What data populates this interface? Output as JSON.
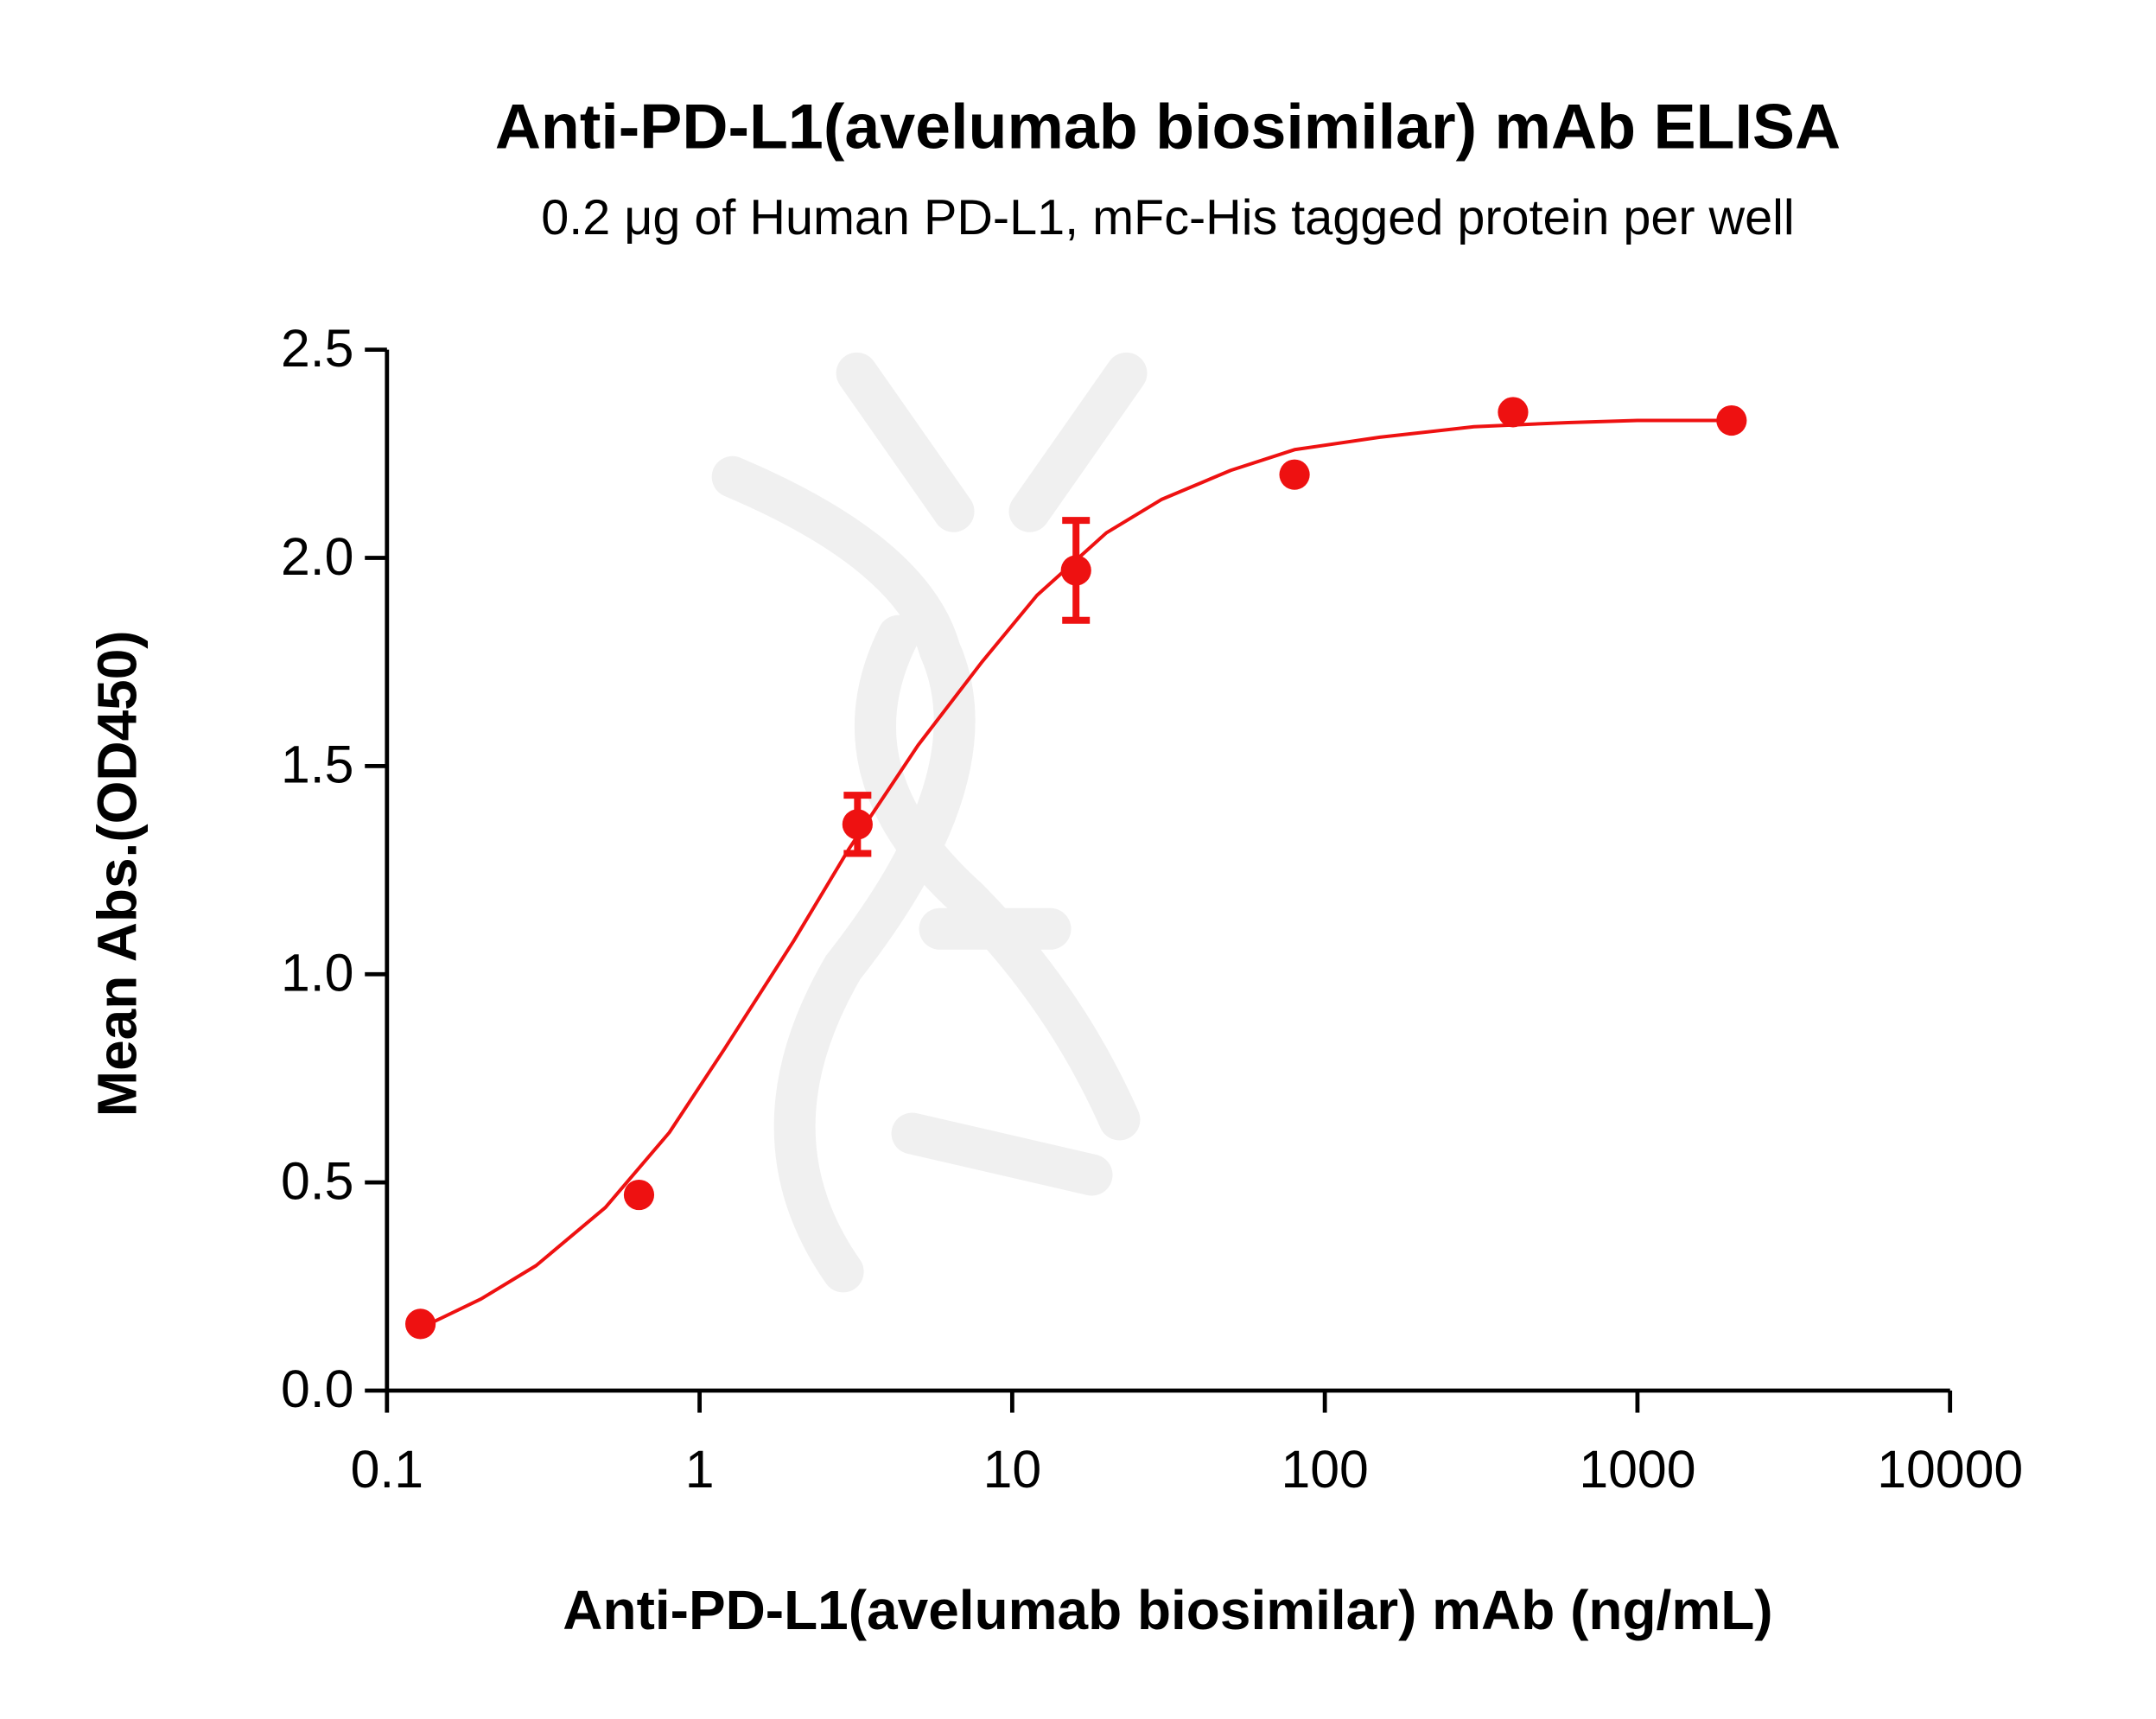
{
  "chart_data": {
    "type": "scatter",
    "title": "Anti-PD-L1(avelumab biosimilar) mAb ELISA",
    "subtitle": "0.2 μg of Human PD-L1,  mFc-His tagged protein per well",
    "x_label": "Anti-PD-L1(avelumab biosimilar) mAb (ng/mL)",
    "y_label": "Mean Abs.(OD450)",
    "x_scale": "log",
    "xlim": [
      0.1,
      10000
    ],
    "xticks": [
      0.1,
      1,
      10,
      100,
      1000,
      10000
    ],
    "ylim": [
      0,
      2.5
    ],
    "yticks": [
      {
        "value": 0,
        "label": "0.0"
      },
      0.5,
      {
        "value": 1,
        "label": "1.0"
      },
      1.5,
      {
        "value": 2,
        "label": "2.0"
      },
      2.5
    ],
    "grid": false,
    "color": "#ee1111",
    "x": [
      0.128,
      0.64,
      3.2,
      16,
      80,
      400,
      2000
    ],
    "values": [
      0.16,
      0.47,
      1.36,
      1.97,
      2.2,
      2.35,
      2.33
    ],
    "errors": [
      null,
      null,
      0.07,
      0.12,
      null,
      null,
      null
    ],
    "fit": {
      "x": [
        0.128,
        0.2,
        0.3,
        0.5,
        0.8,
        1.2,
        2,
        3,
        5,
        8,
        12,
        20,
        30,
        50,
        80,
        150,
        300,
        600,
        1000,
        2000
      ],
      "values": [
        0.15,
        0.22,
        0.3,
        0.44,
        0.62,
        0.82,
        1.08,
        1.3,
        1.55,
        1.75,
        1.91,
        2.06,
        2.14,
        2.21,
        2.26,
        2.29,
        2.315,
        2.325,
        2.33,
        2.33
      ]
    }
  }
}
